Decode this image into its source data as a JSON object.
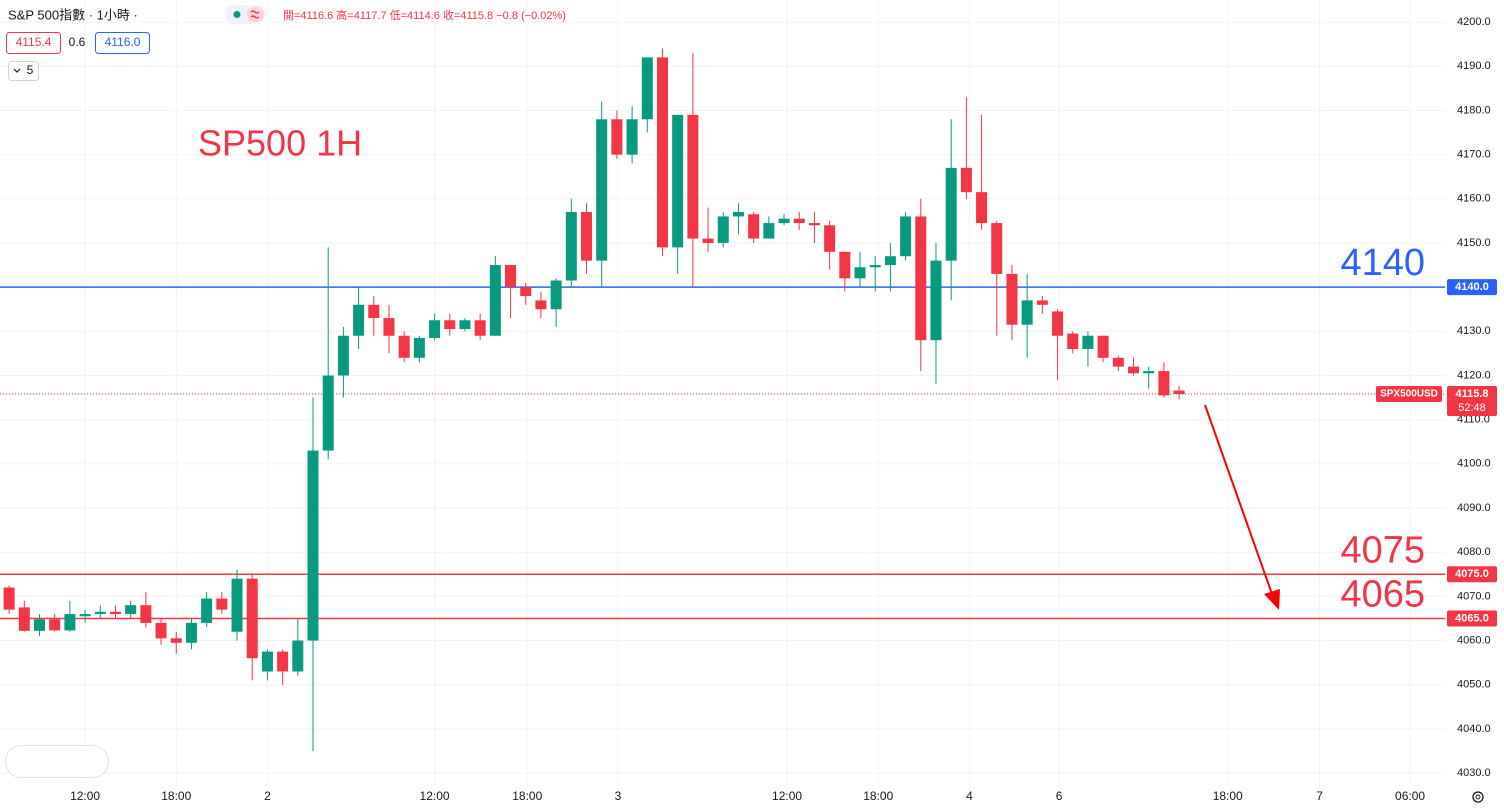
{
  "chart_data": {
    "type": "candlestick",
    "header": "S&P 500指數 · 1小時 ·",
    "ohlc_legend": "開=4116.6 高=4117.7 低=4114.6 收=4115.8 −0.8 (−0.02%)",
    "bid": "4115.4",
    "spread": "0.6",
    "ask": "4116.0",
    "indicator_count": 5,
    "annotation": "SP500 1H",
    "up_color": "#089981",
    "down_color": "#f23645",
    "open": [
      4072,
      4067.5,
      4062.2,
      4064.8,
      4062.3,
      4065.5,
      4066,
      4066.5,
      4066,
      4068,
      4064,
      4060.5,
      4059.5,
      4064,
      4069.5,
      4062,
      4074,
      4053,
      4057.5,
      4053,
      4060,
      4103,
      4120,
      4129,
      4136,
      4133,
      4129,
      4124,
      4128.5,
      4132.5,
      4130.5,
      4132.5,
      4129,
      4145,
      4140,
      4137,
      4135,
      4141.5,
      4157,
      4146,
      4178,
      4170,
      4178,
      4192,
      4149,
      4179,
      4151,
      4150,
      4156,
      4156.5,
      4151,
      4154.5,
      4155.5,
      4154.5,
      4154,
      4148,
      4142,
      4144.5,
      4145,
      4147,
      4156,
      4128,
      4146,
      4167,
      4161.5,
      4154.5,
      4143,
      4131.5,
      4137,
      4134.5,
      4129.5,
      4126,
      4129,
      4124,
      4122,
      4120.5,
      4121,
      4116.6
    ],
    "high": [
      4072.5,
      4069,
      4066,
      4066,
      4069,
      4067,
      4068,
      4068,
      4069,
      4071,
      4065,
      4062,
      4065,
      4071,
      4071,
      4076,
      4075,
      4058,
      4058,
      4065,
      4115,
      4149,
      4131,
      4140,
      4138,
      4136,
      4130,
      4129,
      4134,
      4134,
      4133,
      4134,
      4147,
      4145,
      4141,
      4139,
      4142,
      4160,
      4159,
      4182,
      4180,
      4181,
      4192,
      4194,
      4179,
      4193,
      4158,
      4157,
      4159,
      4157,
      4156,
      4156.5,
      4157,
      4157,
      4155,
      4148,
      4148,
      4147,
      4150,
      4157,
      4160,
      4150,
      4178,
      4183,
      4179,
      4155,
      4145,
      4143,
      4138,
      4135,
      4130,
      4130,
      4129,
      4124.5,
      4124,
      4122,
      4123,
      4117.7
    ],
    "low": [
      4066,
      4062,
      4061,
      4062,
      4062,
      4064,
      4065,
      4065,
      4065,
      4063,
      4059,
      4057,
      4058,
      4063,
      4066,
      4060,
      4051,
      4051,
      4050,
      4052,
      4035,
      4101,
      4115,
      4126,
      4129,
      4125,
      4123,
      4123,
      4128,
      4129,
      4130,
      4128,
      4129,
      4133,
      4136,
      4133,
      4131,
      4140,
      4143,
      4140,
      4169,
      4168,
      4175,
      4147,
      4143,
      4140,
      4148,
      4149,
      4152,
      4150,
      4151,
      4154,
      4153,
      4150,
      4144,
      4139,
      4140,
      4139,
      4139,
      4146,
      4121,
      4118,
      4137,
      4160,
      4153,
      4129,
      4128,
      4124,
      4134,
      4119,
      4125,
      4122,
      4123,
      4121,
      4120,
      4117,
      4115,
      4114.6
    ],
    "close": [
      4067,
      4062.2,
      4064.8,
      4062.3,
      4066,
      4066,
      4066.5,
      4066,
      4068,
      4064,
      4060.5,
      4059.5,
      4064,
      4069.5,
      4067,
      4074,
      4056,
      4057.5,
      4053,
      4060,
      4103,
      4120,
      4129,
      4136,
      4133,
      4129,
      4124,
      4128.5,
      4132.5,
      4130.5,
      4132.5,
      4129,
      4145,
      4140,
      4138,
      4135,
      4141.5,
      4157,
      4146,
      4178,
      4170,
      4178,
      4192,
      4149,
      4179,
      4151,
      4150,
      4156,
      4157,
      4151,
      4154.5,
      4155.5,
      4154.5,
      4154,
      4148,
      4142,
      4144.5,
      4145,
      4147,
      4156,
      4128,
      4146,
      4167,
      4161.5,
      4154.5,
      4143,
      4131.5,
      4137,
      4136,
      4129,
      4126,
      4129,
      4124,
      4122,
      4120.5,
      4121,
      4115.5,
      4115.8
    ],
    "xlim": [
      -0.6,
      94.5
    ],
    "xticks": [
      {
        "value": 5,
        "label": "12:00"
      },
      {
        "value": 11,
        "label": "18:00"
      },
      {
        "value": 17,
        "label": "2"
      },
      {
        "value": 28,
        "label": "12:00"
      },
      {
        "value": 34.1,
        "label": "18:00"
      },
      {
        "value": 40.07,
        "label": "3"
      },
      {
        "value": 51.2,
        "label": "12:00"
      },
      {
        "value": 57.2,
        "label": "18:00"
      },
      {
        "value": 63.2,
        "label": "4"
      },
      {
        "value": 69.1,
        "label": "6"
      },
      {
        "value": 80.2,
        "label": "18:00"
      },
      {
        "value": 86.25,
        "label": "7"
      },
      {
        "value": 92.2,
        "label": "06:00"
      }
    ],
    "ylim": [
      4027.3,
      4205
    ],
    "yticks": [
      {
        "value": 4030,
        "label": "4030.0"
      },
      {
        "value": 4040,
        "label": "4040.0"
      },
      {
        "value": 4050,
        "label": "4050.0"
      },
      {
        "value": 4060,
        "label": "4060.0"
      },
      {
        "value": 4070,
        "label": "4070.0"
      },
      {
        "value": 4080,
        "label": "4080.0"
      },
      {
        "value": 4090,
        "label": "4090.0"
      },
      {
        "value": 4100,
        "label": "4100.0"
      },
      {
        "value": 4110,
        "label": "4110.0"
      },
      {
        "value": 4120,
        "label": "4120.0"
      },
      {
        "value": 4130,
        "label": "4130.0"
      },
      {
        "value": 4140,
        "label": "4140.0"
      },
      {
        "value": 4150,
        "label": "4150.0"
      },
      {
        "value": 4160,
        "label": "4160.0"
      },
      {
        "value": 4170,
        "label": "4170.0"
      },
      {
        "value": 4180,
        "label": "4180.0"
      },
      {
        "value": 4190,
        "label": "4190.0"
      },
      {
        "value": 4200,
        "label": "4200.0"
      }
    ],
    "grid": true,
    "hlines": [
      {
        "value": 4140,
        "label": "4140.0",
        "text": "4140",
        "color": "#2962ff"
      },
      {
        "value": 4075,
        "label": "4075.0",
        "text": "4075",
        "color": "#f23645"
      },
      {
        "value": 4065,
        "label": "4065.0",
        "text": "4065",
        "color": "#f23645"
      }
    ],
    "last_price": {
      "symbol": "SPX500USD",
      "value": 4115.8,
      "countdown": "52:48"
    }
  }
}
